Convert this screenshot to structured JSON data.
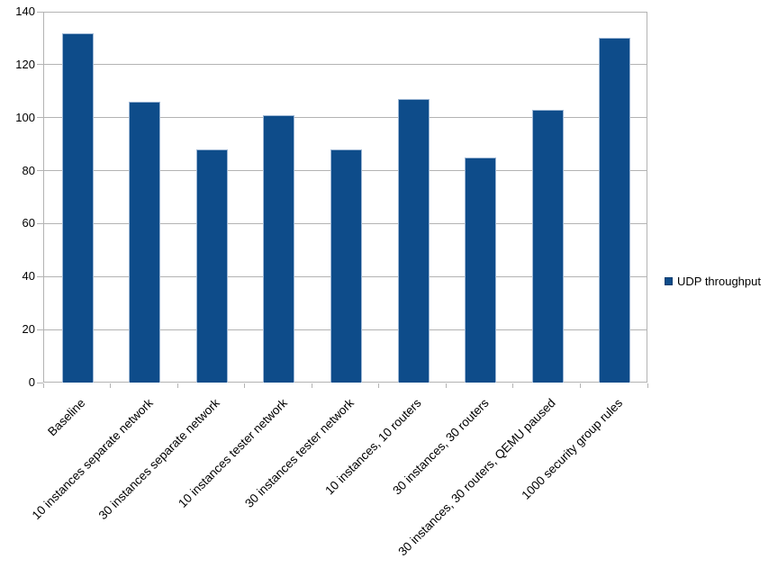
{
  "chart_data": {
    "type": "bar",
    "title": "",
    "xlabel": "",
    "ylabel": "",
    "categories": [
      "Baseline",
      "10 instances separate network",
      "30 instances separate network",
      "10 instances tester network",
      "30 instances tester network",
      "10 instances, 10 routers",
      "30 instances, 30 routers",
      "30 instances, 30 routers, QEMU paused",
      "1000 security group rules"
    ],
    "series": [
      {
        "name": "UDP throughput",
        "values": [
          132,
          106,
          88,
          101,
          88,
          107,
          85,
          103,
          130
        ]
      }
    ],
    "ylim": [
      0,
      140
    ],
    "yticks": [
      0,
      20,
      40,
      60,
      80,
      100,
      120,
      140
    ],
    "grid": "horizontal",
    "legend_position": "right",
    "colors": {
      "bar_fill": "#0e4c8a",
      "bar_border": "#9cb6d4",
      "gridline": "#b3b3b3",
      "axis_line": "#b3b3b3",
      "label_text": "#000000",
      "background": "#ffffff"
    }
  }
}
